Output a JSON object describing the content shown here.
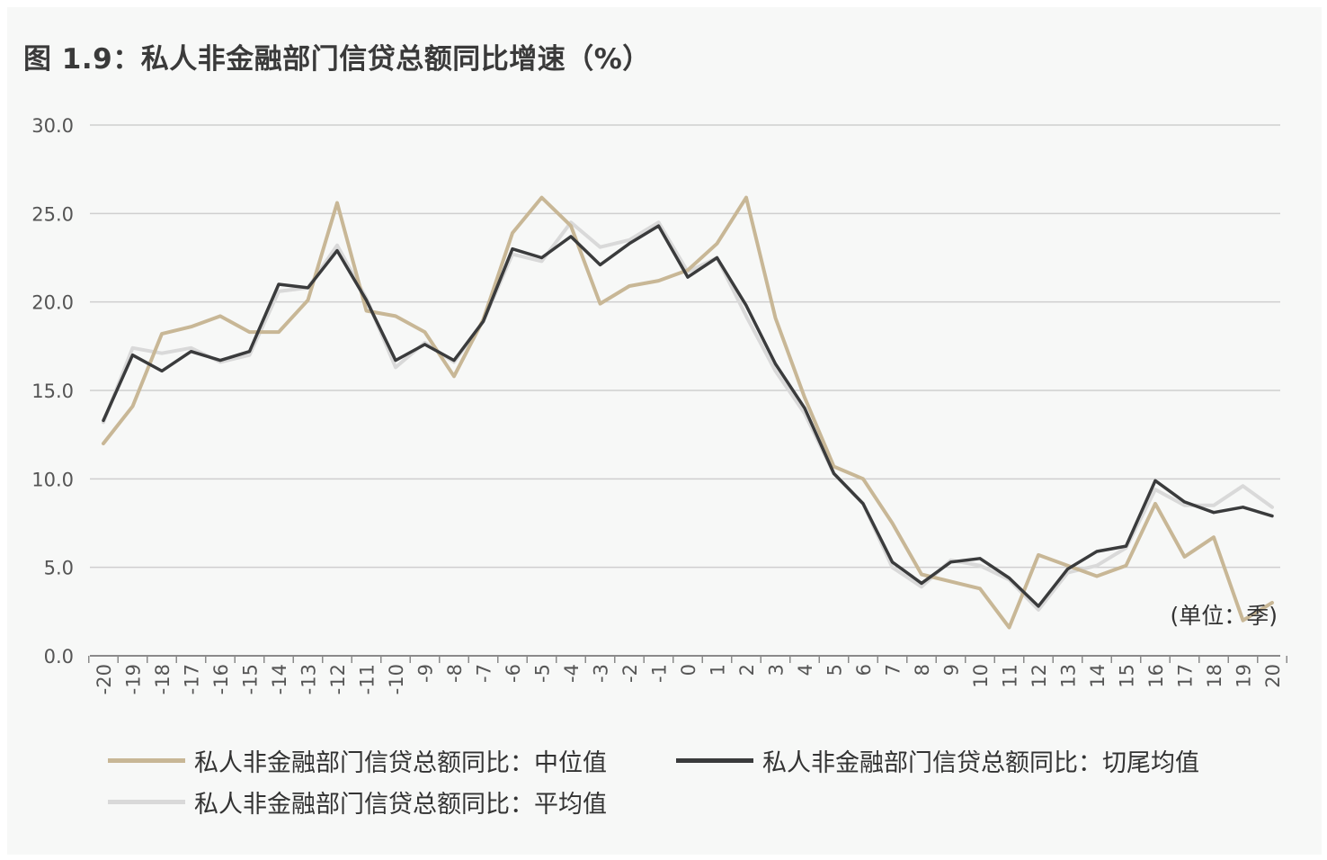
{
  "chart_data": {
    "type": "line",
    "title": "图 1.9：私人非金融部门信贷总额同比增速（%）",
    "unit_note": "(单位：季)",
    "x": [
      "-20",
      "-19",
      "-18",
      "-17",
      "-16",
      "-15",
      "-14",
      "-13",
      "-12",
      "-11",
      "-10",
      "-9",
      "-8",
      "-7",
      "-6",
      "-5",
      "-4",
      "-3",
      "-2",
      "-1",
      "0",
      "1",
      "2",
      "3",
      "4",
      "5",
      "6",
      "7",
      "8",
      "9",
      "10",
      "11",
      "12",
      "13",
      "14",
      "15",
      "16",
      "17",
      "18",
      "19",
      "20"
    ],
    "ylim": [
      0,
      30
    ],
    "yticks": [
      "0.0",
      "5.0",
      "10.0",
      "15.0",
      "20.0",
      "25.0",
      "30.0"
    ],
    "grid": true,
    "legend_position": "bottom",
    "series": [
      {
        "name": "私人非金融部门信贷总额同比：中位值",
        "color": "#c8b796",
        "values": [
          12.0,
          14.1,
          18.2,
          18.6,
          19.2,
          18.3,
          18.3,
          20.1,
          25.6,
          19.5,
          19.2,
          18.3,
          15.8,
          19.0,
          23.9,
          25.9,
          24.3,
          19.9,
          20.9,
          21.2,
          21.8,
          23.3,
          25.9,
          19.1,
          14.6,
          10.7,
          10.0,
          7.5,
          4.6,
          4.2,
          3.8,
          1.6,
          5.7,
          5.1,
          4.5,
          5.1,
          8.6,
          5.6,
          6.7,
          2.0,
          3.0
        ]
      },
      {
        "name": "私人非金融部门信贷总额同比：切尾均值",
        "color": "#3a3b3c",
        "values": [
          13.3,
          17.0,
          16.1,
          17.2,
          16.7,
          17.2,
          21.0,
          20.8,
          22.9,
          20.1,
          16.7,
          17.6,
          16.7,
          18.9,
          23.0,
          22.5,
          23.7,
          22.1,
          23.3,
          24.3,
          21.4,
          22.5,
          19.8,
          16.5,
          14.0,
          10.3,
          8.6,
          5.3,
          4.1,
          5.3,
          5.5,
          4.4,
          2.8,
          4.9,
          5.9,
          6.2,
          9.9,
          8.7,
          8.1,
          8.4,
          7.9
        ]
      },
      {
        "name": "私人非金融部门信贷总额同比：平均值",
        "color": "#d9d9d9",
        "values": [
          13.2,
          17.4,
          17.1,
          17.4,
          16.6,
          17.0,
          20.6,
          20.8,
          23.2,
          20.2,
          16.3,
          17.7,
          16.6,
          18.9,
          22.7,
          22.3,
          24.5,
          23.1,
          23.5,
          24.5,
          21.7,
          22.5,
          19.2,
          16.1,
          13.7,
          10.3,
          8.6,
          5.0,
          3.9,
          5.4,
          5.1,
          4.3,
          2.6,
          4.7,
          5.1,
          6.1,
          9.4,
          8.5,
          8.5,
          9.6,
          8.4
        ]
      }
    ]
  }
}
